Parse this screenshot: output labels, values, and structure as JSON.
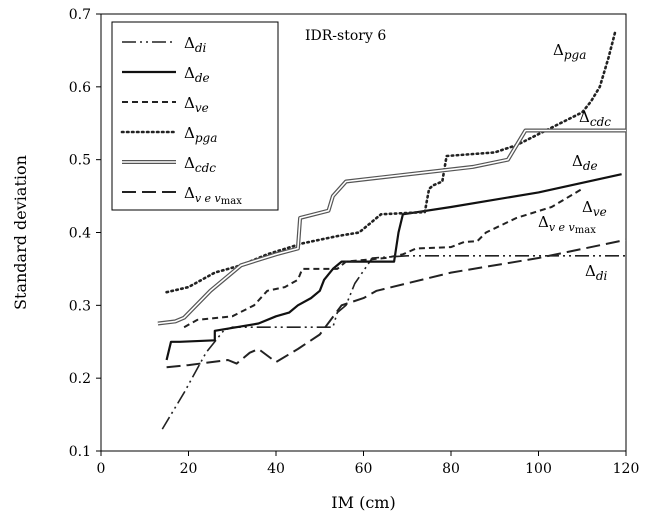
{
  "chart_data": {
    "type": "line",
    "title": "",
    "annotation": "IDR-story 6",
    "xlabel": "IM (cm)",
    "ylabel": "Standard deviation",
    "xlim": [
      0,
      120
    ],
    "ylim": [
      0.1,
      0.7
    ],
    "xticks": [
      0,
      20,
      40,
      60,
      80,
      100,
      120
    ],
    "yticks": [
      0.1,
      0.2,
      0.3,
      0.4,
      0.5,
      0.6,
      0.7
    ],
    "xtick_labels": [
      "0",
      "20",
      "40",
      "60",
      "80",
      "100",
      "120"
    ],
    "ytick_labels": [
      "0.1",
      "0.2",
      "0.3",
      "0.4",
      "0.5",
      "0.6",
      "0.7"
    ],
    "grid": false,
    "legend_position": "top-left",
    "series": [
      {
        "name": "Δ_di",
        "style": "dash-dot-dot",
        "points": [
          [
            14,
            0.13
          ],
          [
            19,
            0.18
          ],
          [
            24,
            0.235
          ],
          [
            28,
            0.265
          ],
          [
            30,
            0.27
          ],
          [
            40,
            0.27
          ],
          [
            48,
            0.27
          ],
          [
            53,
            0.27
          ],
          [
            54,
            0.29
          ],
          [
            56,
            0.3
          ],
          [
            58,
            0.33
          ],
          [
            62,
            0.365
          ],
          [
            70,
            0.368
          ],
          [
            90,
            0.368
          ],
          [
            120,
            0.368
          ]
        ]
      },
      {
        "name": "Δ_de",
        "style": "solid",
        "points": [
          [
            15,
            0.225
          ],
          [
            16,
            0.25
          ],
          [
            18,
            0.25
          ],
          [
            26,
            0.252
          ],
          [
            26,
            0.265
          ],
          [
            31,
            0.27
          ],
          [
            36,
            0.275
          ],
          [
            40,
            0.285
          ],
          [
            43,
            0.29
          ],
          [
            45,
            0.3
          ],
          [
            48,
            0.31
          ],
          [
            50,
            0.32
          ],
          [
            51,
            0.335
          ],
          [
            53,
            0.35
          ],
          [
            55,
            0.36
          ],
          [
            60,
            0.36
          ],
          [
            67,
            0.36
          ],
          [
            68,
            0.4
          ],
          [
            69,
            0.425
          ],
          [
            80,
            0.435
          ],
          [
            100,
            0.455
          ],
          [
            119,
            0.48
          ]
        ]
      },
      {
        "name": "Δ_ve",
        "style": "dashed",
        "points": [
          [
            19,
            0.27
          ],
          [
            22,
            0.28
          ],
          [
            30,
            0.285
          ],
          [
            35,
            0.3
          ],
          [
            38,
            0.32
          ],
          [
            42,
            0.325
          ],
          [
            45,
            0.335
          ],
          [
            46,
            0.35
          ],
          [
            54,
            0.35
          ],
          [
            56,
            0.36
          ],
          [
            65,
            0.365
          ],
          [
            69,
            0.37
          ],
          [
            72,
            0.378
          ],
          [
            80,
            0.38
          ],
          [
            83,
            0.387
          ],
          [
            86,
            0.388
          ],
          [
            88,
            0.4
          ],
          [
            95,
            0.42
          ],
          [
            103,
            0.435
          ],
          [
            110,
            0.46
          ]
        ]
      },
      {
        "name": "Δ_pga",
        "style": "dotted",
        "points": [
          [
            15,
            0.318
          ],
          [
            20,
            0.325
          ],
          [
            26,
            0.345
          ],
          [
            32,
            0.355
          ],
          [
            38,
            0.37
          ],
          [
            46,
            0.385
          ],
          [
            54,
            0.395
          ],
          [
            59,
            0.4
          ],
          [
            61,
            0.41
          ],
          [
            64,
            0.425
          ],
          [
            74,
            0.428
          ],
          [
            75,
            0.46
          ],
          [
            76,
            0.465
          ],
          [
            78,
            0.47
          ],
          [
            79,
            0.505
          ],
          [
            90,
            0.51
          ],
          [
            95,
            0.52
          ],
          [
            105,
            0.55
          ],
          [
            110,
            0.565
          ],
          [
            112,
            0.58
          ],
          [
            114,
            0.6
          ],
          [
            116,
            0.64
          ],
          [
            117.5,
            0.675
          ]
        ]
      },
      {
        "name": "Δ_cdc",
        "style": "double",
        "points": [
          [
            13,
            0.275
          ],
          [
            17,
            0.278
          ],
          [
            19,
            0.283
          ],
          [
            25,
            0.32
          ],
          [
            32,
            0.355
          ],
          [
            40,
            0.37
          ],
          [
            45,
            0.378
          ],
          [
            45.5,
            0.42
          ],
          [
            52,
            0.43
          ],
          [
            53,
            0.45
          ],
          [
            56,
            0.47
          ],
          [
            85,
            0.49
          ],
          [
            93,
            0.5
          ],
          [
            97,
            0.54
          ],
          [
            100,
            0.54
          ],
          [
            120,
            0.54
          ]
        ]
      },
      {
        "name": "Δ_ev_vmax",
        "style": "long-dash",
        "points": [
          [
            15,
            0.215
          ],
          [
            20,
            0.218
          ],
          [
            29,
            0.225
          ],
          [
            31,
            0.22
          ],
          [
            34,
            0.235
          ],
          [
            36,
            0.24
          ],
          [
            40,
            0.222
          ],
          [
            45,
            0.24
          ],
          [
            50,
            0.26
          ],
          [
            55,
            0.3
          ],
          [
            60,
            0.31
          ],
          [
            63,
            0.32
          ],
          [
            80,
            0.345
          ],
          [
            100,
            0.365
          ],
          [
            120,
            0.39
          ]
        ]
      }
    ],
    "series_labels": [
      {
        "series": 3,
        "text": "Δ",
        "sub": "pga"
      },
      {
        "series": 4,
        "text": "Δ",
        "sub": "cdc"
      },
      {
        "series": 1,
        "text": "Δ",
        "sub": "de"
      },
      {
        "series": 2,
        "text": "Δ",
        "sub": "ve"
      },
      {
        "series": 5,
        "text": "Δ",
        "sub": "v e v max"
      },
      {
        "series": 0,
        "text": "Δ",
        "sub": "di"
      }
    ],
    "legend_entries": [
      {
        "text": "Δ",
        "sub": "di"
      },
      {
        "text": "Δ",
        "sub": "de"
      },
      {
        "text": "Δ",
        "sub": "ve"
      },
      {
        "text": "Δ",
        "sub": "pga"
      },
      {
        "text": "Δ",
        "sub": "cdc"
      },
      {
        "text": "Δ",
        "sub": "v e v max"
      }
    ]
  }
}
